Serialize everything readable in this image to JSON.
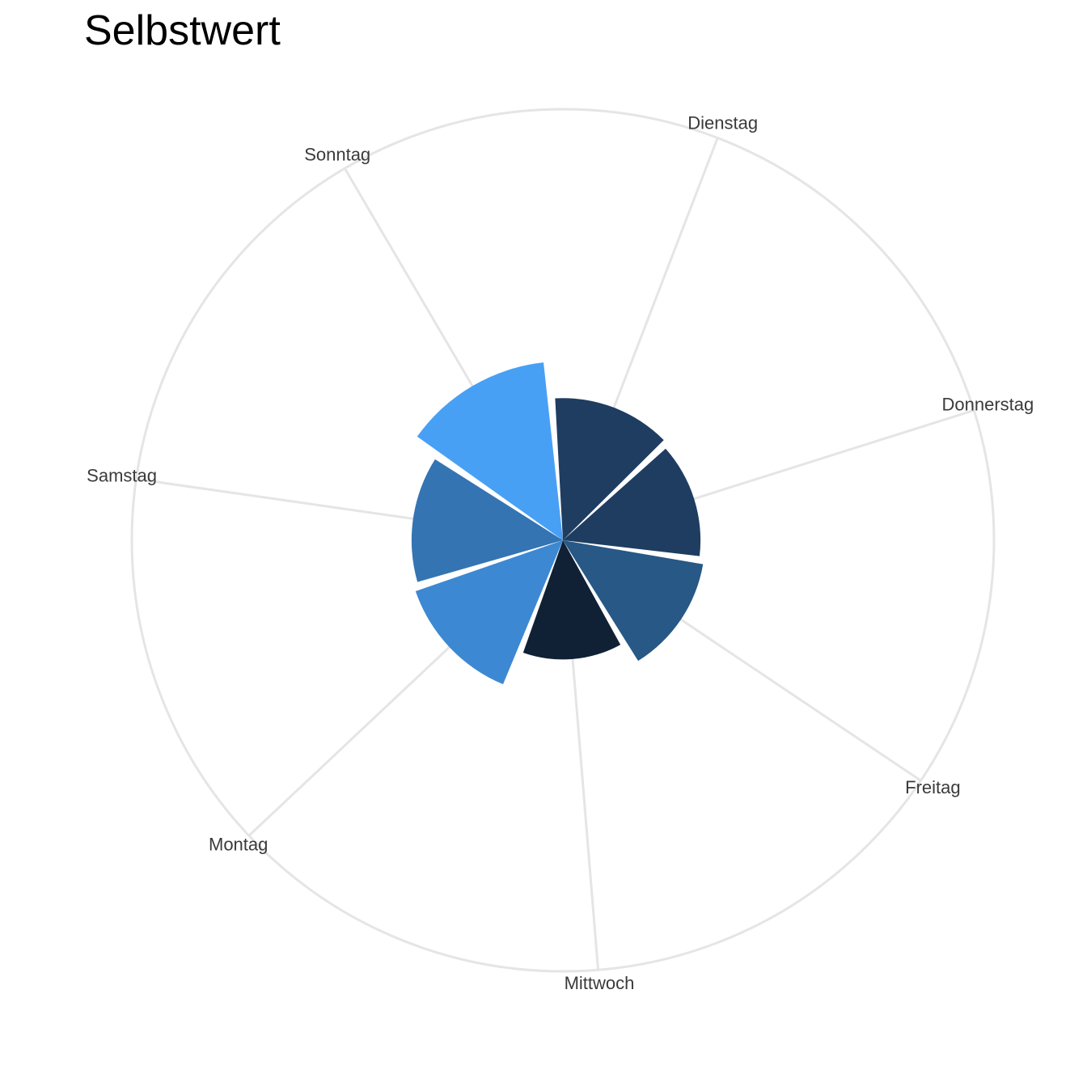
{
  "chart_data": {
    "type": "polar-bar",
    "title": "Selbstwert",
    "categories": [
      "Sonntag",
      "Dienstag",
      "Donnerstag",
      "Freitag",
      "Mittwoch",
      "Montag",
      "Samstag"
    ],
    "values": [
      3.9,
      3.1,
      3.0,
      3.1,
      2.6,
      3.4,
      3.3
    ],
    "colors": [
      "#48a0f5",
      "#1e3d61",
      "#1e3d61",
      "#275886",
      "#102135",
      "#3d88d2",
      "#3474b3"
    ],
    "rlim": [
      0,
      9.4
    ],
    "start_angle_deg": -30.4,
    "bar_width_fraction": 0.94,
    "grid": "outer ring and spokes only",
    "legend": "none"
  }
}
